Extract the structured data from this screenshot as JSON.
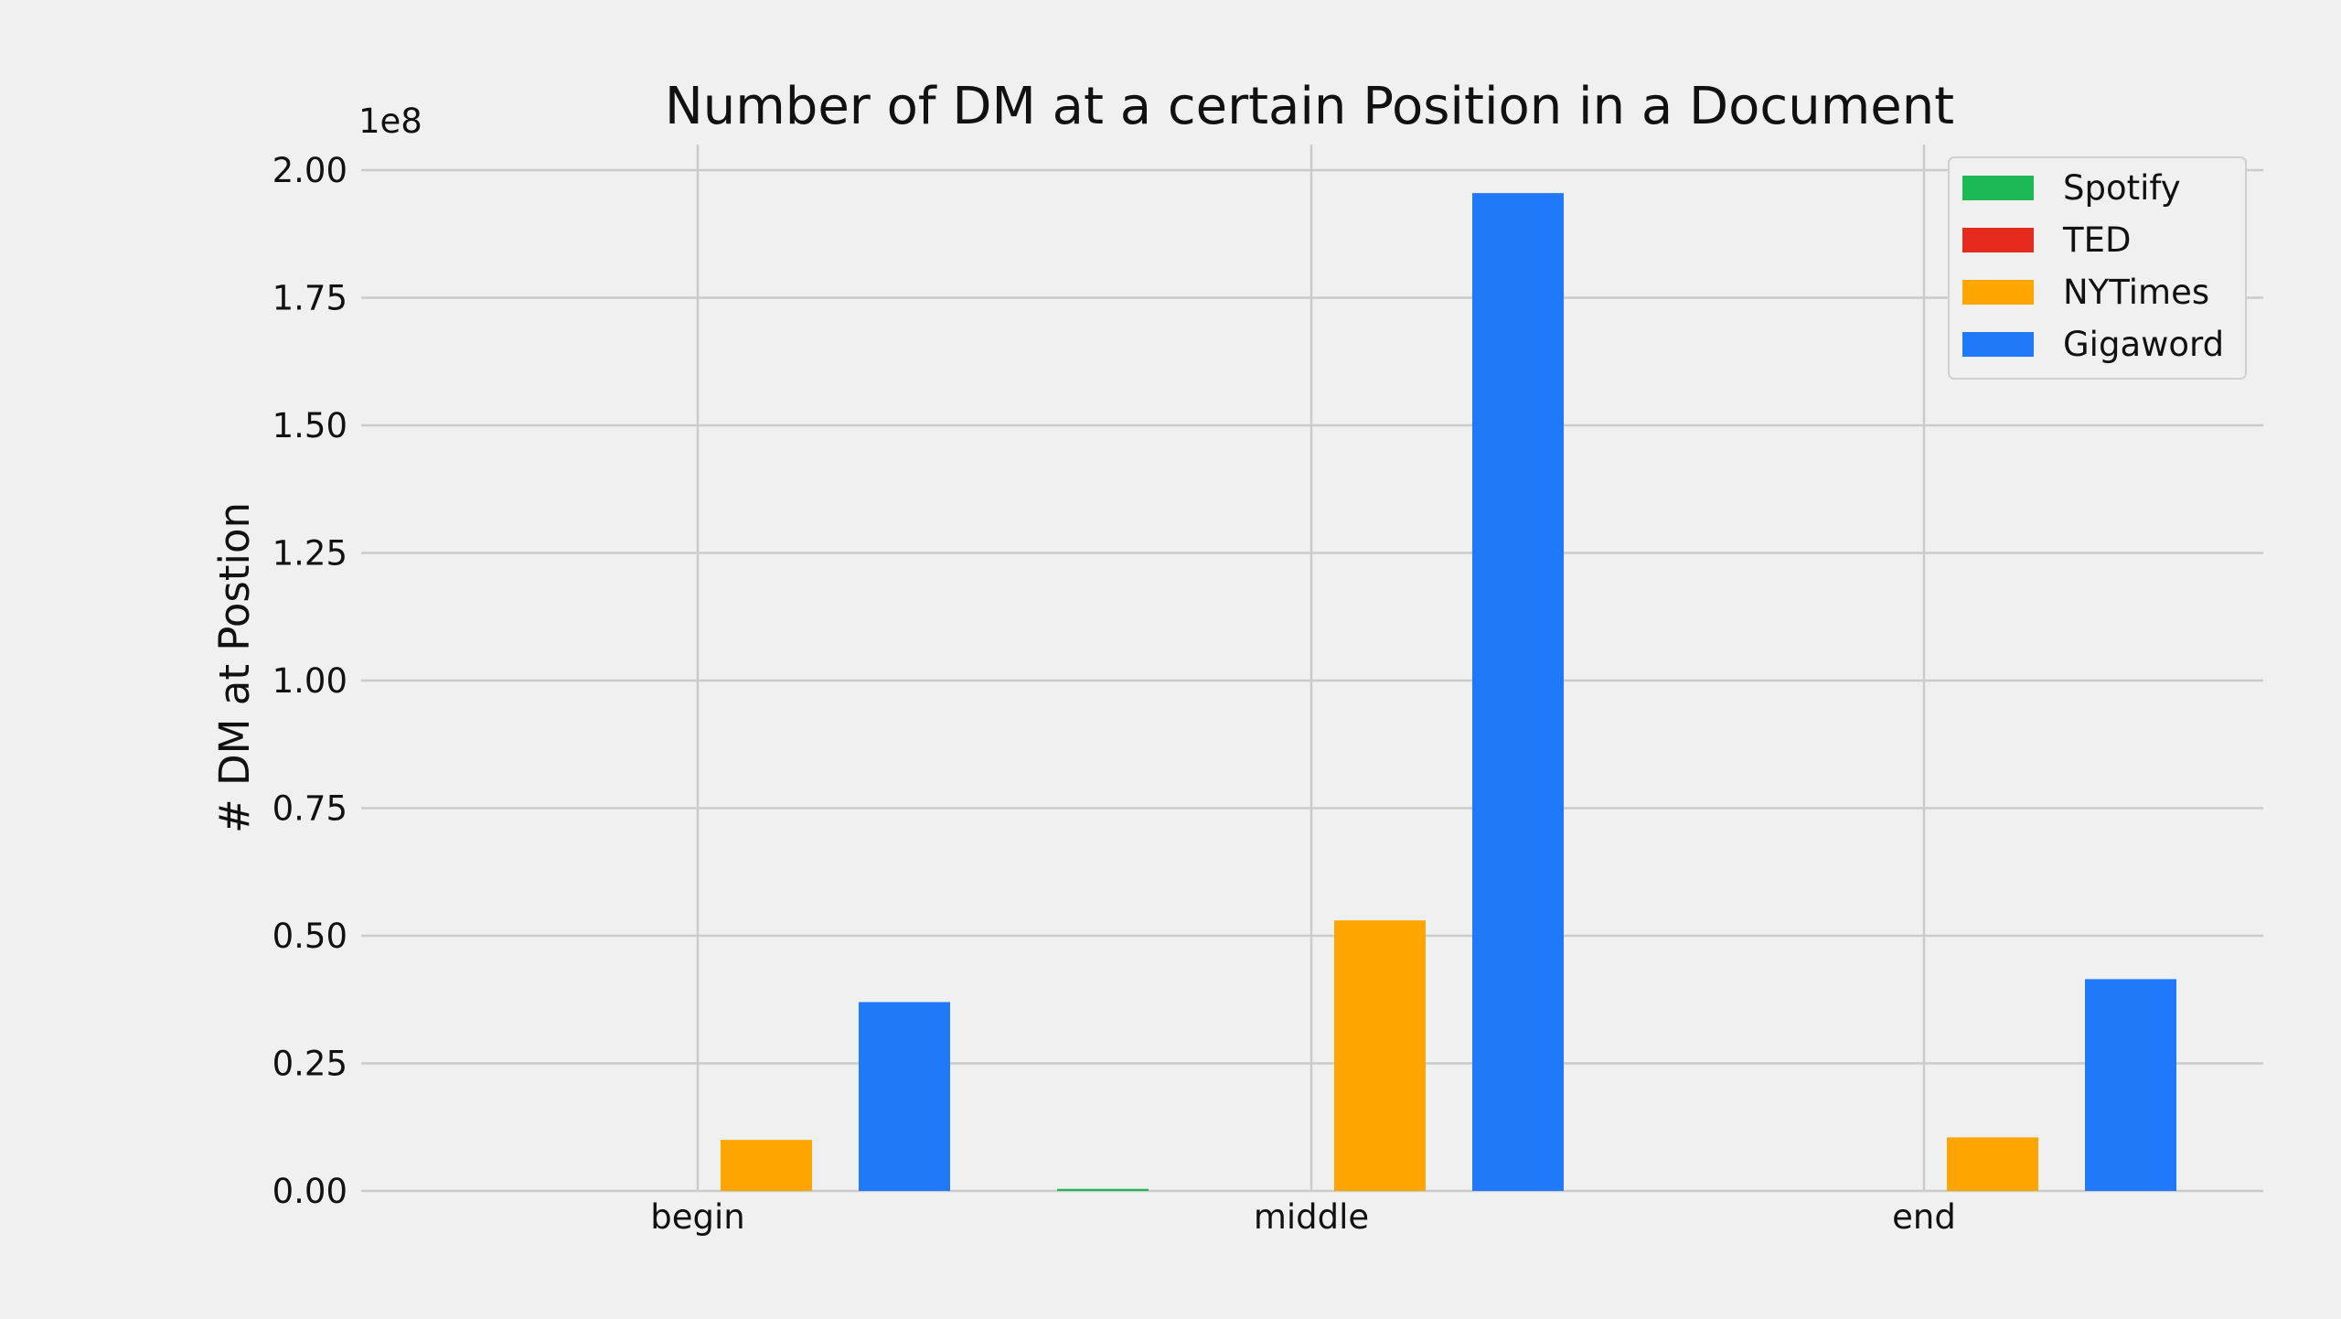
{
  "chart_data": {
    "type": "bar",
    "title": "Number of DM at a certain Position in a Document",
    "xlabel": "",
    "ylabel": "# DM at Postion",
    "y_offset_label": "1e8",
    "y_scale_multiplier": 100000000,
    "categories": [
      "begin",
      "middle",
      "end"
    ],
    "ylim": [
      0,
      2.0
    ],
    "yticks": [
      "0.00",
      "0.25",
      "0.50",
      "0.75",
      "1.00",
      "1.25",
      "1.50",
      "1.75",
      "2.00"
    ],
    "grid": true,
    "legend_position": "top-right",
    "series": [
      {
        "name": "Spotify",
        "color": "#1db954",
        "values": [
          0.0,
          0.004,
          0.0
        ]
      },
      {
        "name": "TED",
        "color": "#e62b1e",
        "values": [
          0.0,
          0.0,
          0.0
        ]
      },
      {
        "name": "NYTimes",
        "color": "#ffa500",
        "values": [
          0.1,
          0.53,
          0.105
        ]
      },
      {
        "name": "Gigaword",
        "color": "#2079f8",
        "values": [
          0.37,
          1.955,
          0.415
        ]
      }
    ]
  }
}
